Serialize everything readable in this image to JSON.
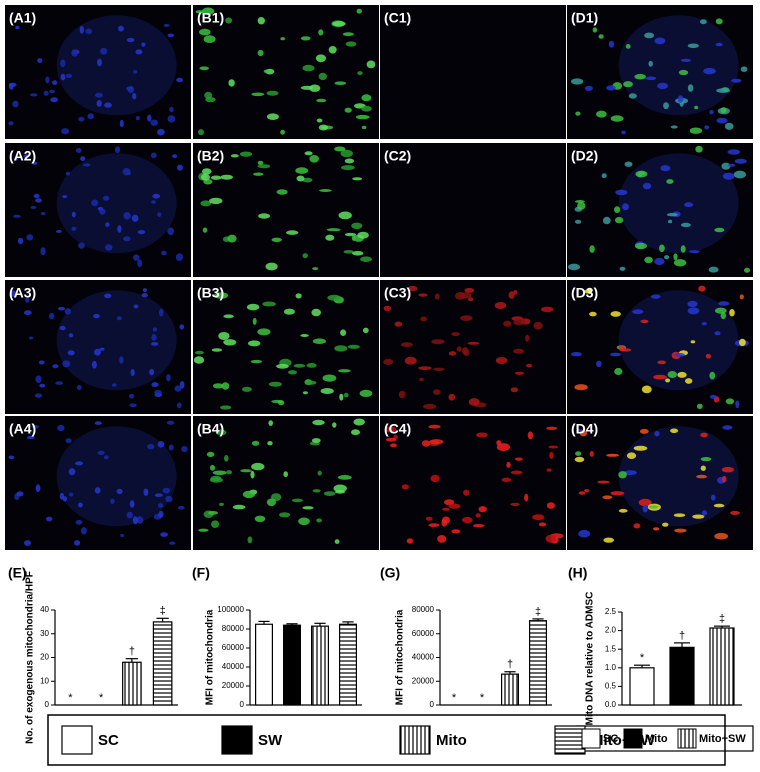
{
  "panels": {
    "rows": [
      [
        "(A1)",
        "(B1)",
        "(C1)",
        "(D1)"
      ],
      [
        "(A2)",
        "(B2)",
        "(C2)",
        "(D2)"
      ],
      [
        "(A3)",
        "(B3)",
        "(C3)",
        "(D3)"
      ],
      [
        "(A4)",
        "(B4)",
        "(C4)",
        "(D4)"
      ]
    ]
  },
  "chart_data": [
    {
      "type": "bar",
      "panel_label": "(E)",
      "y_label": "No. of exogenous mitochondria/HPF",
      "categories": [
        "SC",
        "SW",
        "Mito",
        "Mito+SW"
      ],
      "fills": [
        "white",
        "black",
        "vertical",
        "horizontal"
      ],
      "values": [
        0,
        0,
        18,
        35
      ],
      "errors": [
        0,
        0,
        1.5,
        1.5
      ],
      "annotations": [
        "*",
        "*",
        "†",
        "‡"
      ],
      "ylim": [
        0,
        40
      ],
      "yticks": [
        0,
        10,
        20,
        30,
        40
      ]
    },
    {
      "type": "bar",
      "panel_label": "(F)",
      "y_label": "MFI of mitochondria",
      "fills": [
        "white",
        "black",
        "vertical",
        "horizontal"
      ],
      "values": [
        85000,
        84000,
        83000,
        85000
      ],
      "errors": [
        3000,
        1500,
        3000,
        2500
      ],
      "ylim": [
        0,
        100000
      ],
      "yticks": [
        0,
        20000,
        40000,
        60000,
        80000,
        100000
      ]
    },
    {
      "type": "bar",
      "panel_label": "(G)",
      "y_label": "MFI of mitochondria",
      "fills": [
        "white",
        "black",
        "vertical",
        "horizontal"
      ],
      "values": [
        0,
        0,
        26000,
        71000
      ],
      "errors": [
        0,
        0,
        2000,
        1500
      ],
      "annotations": [
        "*",
        "*",
        "†",
        "‡"
      ],
      "ylim": [
        0,
        80000
      ],
      "yticks": [
        0,
        20000,
        40000,
        60000,
        80000
      ]
    },
    {
      "type": "bar",
      "panel_label": "(H)",
      "y_label": "Mito DNA relative to ADMSC",
      "categories": [
        "SC",
        "Mito",
        "Mito+SW"
      ],
      "fills": [
        "white",
        "black",
        "vertical"
      ],
      "values": [
        1.0,
        1.55,
        2.07
      ],
      "errors": [
        0.07,
        0.12,
        0.05
      ],
      "annotations": [
        "*",
        "†",
        "‡"
      ],
      "ylim": [
        0,
        2.5
      ],
      "yticks": [
        {
          "value": 0,
          "label": "0.0"
        },
        0.5,
        {
          "value": 1,
          "label": "1.0"
        },
        1.5,
        {
          "value": 2,
          "label": "2.0"
        },
        2.5
      ]
    }
  ]
}
